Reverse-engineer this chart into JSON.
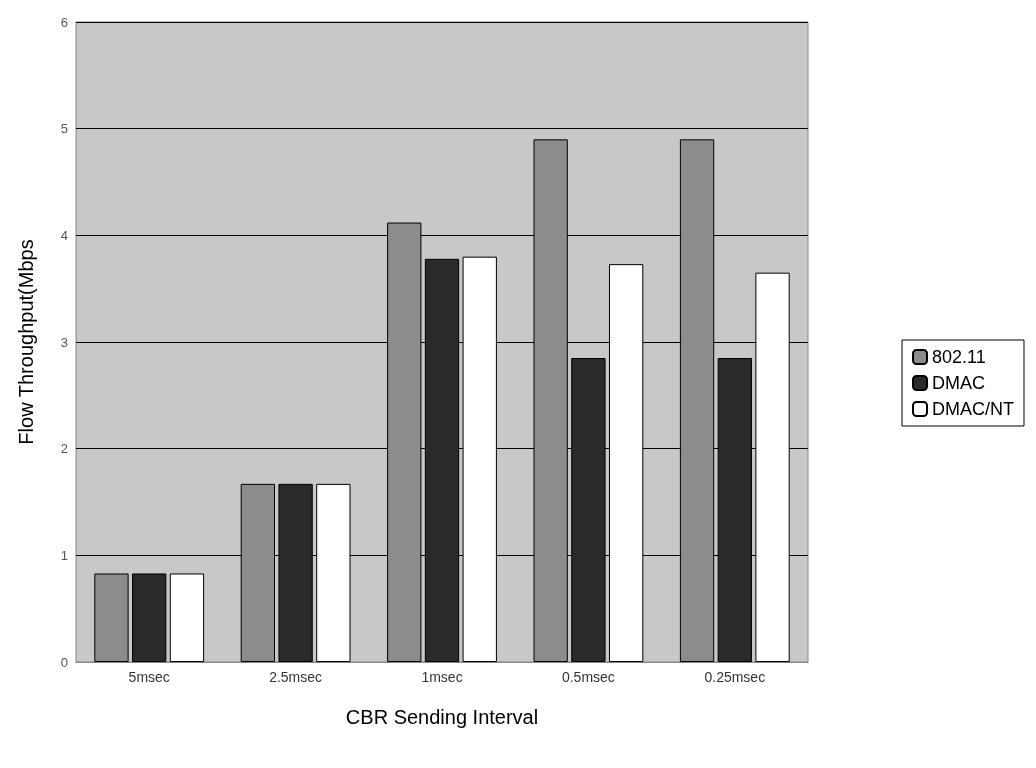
{
  "chart_data": {
    "type": "bar",
    "xlabel": "CBR Sending Interval",
    "ylabel": "Flow Throughput(Mbps",
    "categories": [
      "5msec",
      "2.5msec",
      "1msec",
      "0.5msec",
      "0.25msec"
    ],
    "series": [
      {
        "name": "802.11",
        "color": "#8c8c8c",
        "values": [
          0.83,
          1.67,
          4.12,
          4.9,
          4.9
        ]
      },
      {
        "name": "DMAC",
        "color": "#2a2a2a",
        "values": [
          0.83,
          1.67,
          3.78,
          2.85,
          2.85
        ]
      },
      {
        "name": "DMAC/NT",
        "color": "#ffffff",
        "values": [
          0.83,
          1.67,
          3.8,
          3.73,
          3.65
        ]
      }
    ],
    "ylim": [
      0,
      6
    ],
    "yticks": [
      0,
      1,
      2,
      3,
      4,
      5,
      6
    ],
    "grid": "y",
    "legend": "right"
  }
}
